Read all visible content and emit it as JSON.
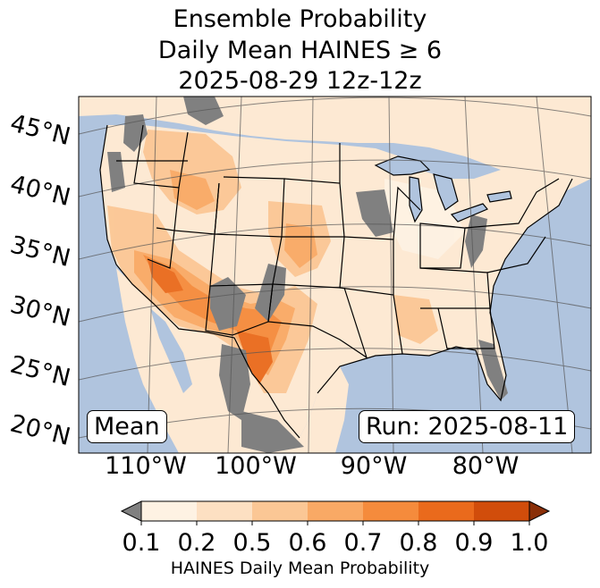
{
  "title": {
    "line1": "Ensemble Probability",
    "line2": "Daily Mean HAINES ≥ 6",
    "line3": "2025-08-29 12z-12z"
  },
  "labels": {
    "statistic": "Mean",
    "run": "Run: 2025-08-11"
  },
  "latitude_labels": [
    "45°N",
    "40°N",
    "35°N",
    "30°N",
    "25°N",
    "20°N"
  ],
  "longitude_labels": [
    "110°W",
    "100°W",
    "90°W",
    "80°W"
  ],
  "colorbar": {
    "label": "HAINES Daily Mean Probability",
    "ticks": [
      "0.1",
      "0.2",
      "0.5",
      "0.6",
      "0.7",
      "0.8",
      "0.9",
      "1.0"
    ],
    "colors": [
      "#fef2e3",
      "#fde0c2",
      "#fbc795",
      "#f9a965",
      "#f58b3c",
      "#ea6a1c",
      "#d14d0b"
    ],
    "under_color": "#808080",
    "over_color": "#8a2f08"
  },
  "colors": {
    "ocean": "#b0c4de",
    "land": "#ffffff",
    "no_data": "#808080",
    "lakes": "#b0c4de"
  }
}
